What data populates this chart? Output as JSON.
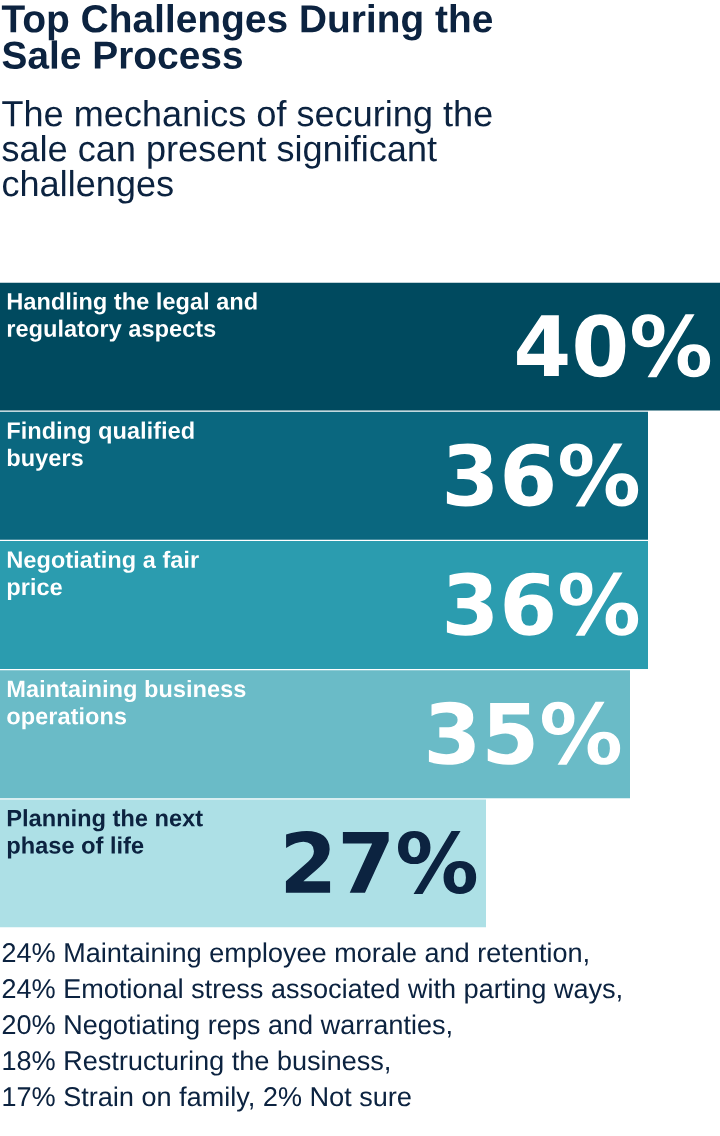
{
  "chart_data": {
    "type": "bar",
    "orientation": "horizontal",
    "title": "Top Challenges During the Sale Process",
    "subtitle": "The mechanics of securing the sale can present significant challenges",
    "categories": [
      "Handling the legal and regulatory aspects",
      "Finding qualified buyers",
      "Negotiating a fair price",
      "Maintaining business operations",
      "Planning the next phase of life"
    ],
    "values": [
      40,
      36,
      36,
      35,
      27
    ],
    "value_labels": [
      "40%",
      "36%",
      "36%",
      "35%",
      "27%"
    ],
    "colors": [
      "#004a5f",
      "#0a677f",
      "#2b9caf",
      "#6abbc7",
      "#ade0e6"
    ],
    "xlim": [
      0,
      40
    ],
    "tick_labels": false,
    "annotations": [
      "24% Maintaining employee morale and retention,",
      "24% Emotional stress associated with parting ways,",
      "20% Negotiating reps and warranties,",
      "18% Restructuring the business,",
      "17% Strain on family, 2% Not sure"
    ]
  }
}
